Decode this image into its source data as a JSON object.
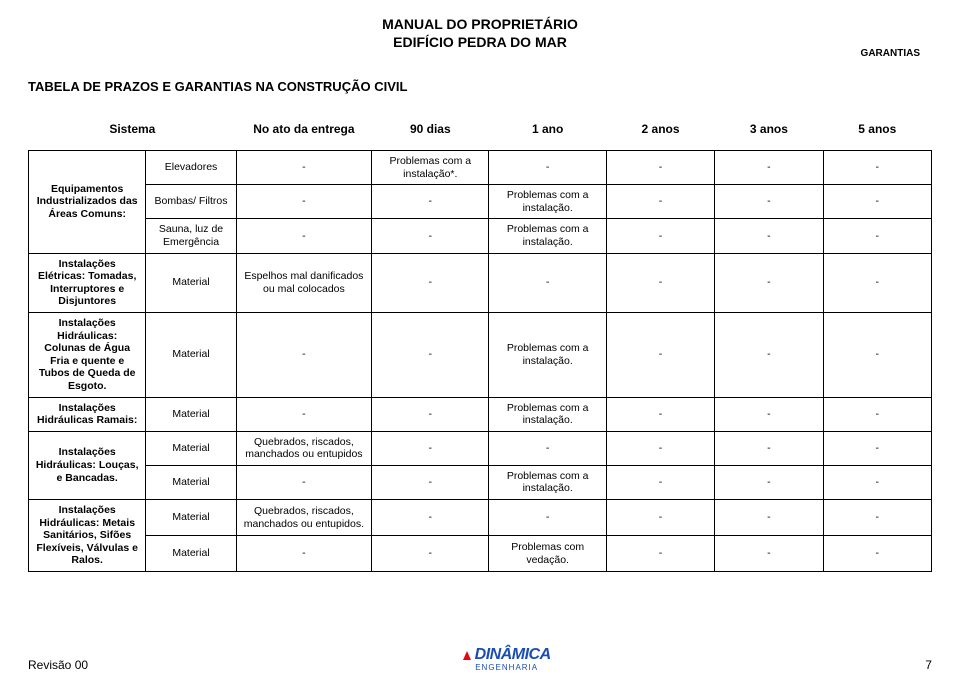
{
  "doc": {
    "title_line1": "MANUAL DO PROPRIETÁRIO",
    "title_line2": "EDIFÍCIO PEDRA DO MAR",
    "top_right": "GARANTIAS",
    "section_title": "TABELA DE PRAZOS E GARANTIAS NA CONSTRUÇÃO CIVIL",
    "revision": "Revisão 00",
    "page_number": "7",
    "logo_name": "DINÂMICA",
    "logo_sub": "ENGENHARIA"
  },
  "colors": {
    "text": "#000000",
    "background": "#ffffff",
    "border": "#000000",
    "logo_blue": "#1a4db3",
    "logo_red": "#e30613"
  },
  "table": {
    "headers": [
      "Sistema",
      "",
      "No ato da entrega",
      "90 dias",
      "1 ano",
      "2 anos",
      "3 anos",
      "5 anos"
    ],
    "groups": [
      {
        "system": "Equipamentos Industrializados das Áreas Comuns:",
        "rows": [
          {
            "sub": "Elevadores",
            "c": [
              "-",
              "Problemas com a instalação*.",
              "-",
              "-",
              "-",
              "-"
            ]
          },
          {
            "sub": "Bombas/ Filtros",
            "c": [
              "-",
              "-",
              "Problemas com a instalação.",
              "-",
              "-",
              "-"
            ]
          },
          {
            "sub": "Sauna, luz de Emergência",
            "c": [
              "-",
              "-",
              "Problemas com a instalação.",
              "-",
              "-",
              "-"
            ]
          }
        ]
      },
      {
        "system": "Instalações Elétricas: Tomadas, Interruptores e Disjuntores",
        "rows": [
          {
            "sub": "Material",
            "c": [
              "Espelhos mal danificados ou mal colocados",
              "-",
              "-",
              "-",
              "-",
              "-"
            ]
          }
        ]
      },
      {
        "system": "Instalações Hidráulicas: Colunas de Água Fria e quente e Tubos de Queda de Esgoto.",
        "rows": [
          {
            "sub": "Material",
            "c": [
              "-",
              "-",
              "Problemas com a instalação.",
              "-",
              "-",
              "-"
            ]
          }
        ]
      },
      {
        "system": "Instalações Hidráulicas Ramais:",
        "rows": [
          {
            "sub": "Material",
            "c": [
              "-",
              "-",
              "Problemas com a instalação.",
              "-",
              "-",
              "-"
            ]
          }
        ]
      },
      {
        "system": "Instalações Hidráulicas: Louças, e Bancadas.",
        "rows": [
          {
            "sub": "Material",
            "c": [
              "Quebrados, riscados, manchados ou entupidos",
              "-",
              "-",
              "-",
              "-",
              "-"
            ]
          },
          {
            "sub": "Material",
            "c": [
              "-",
              "-",
              "Problemas com a instalação.",
              "-",
              "-",
              "-"
            ]
          }
        ]
      },
      {
        "system": "Instalações Hidráulicas: Metais Sanitários, Sifões Flexíveis, Válvulas e Ralos.",
        "rows": [
          {
            "sub": "Material",
            "c": [
              "Quebrados, riscados, manchados ou entupidos.",
              "-",
              "-",
              "-",
              "-",
              "-"
            ]
          },
          {
            "sub": "Material",
            "c": [
              "-",
              "-",
              "Problemas com vedação.",
              "-",
              "-",
              "-"
            ]
          }
        ]
      }
    ]
  }
}
